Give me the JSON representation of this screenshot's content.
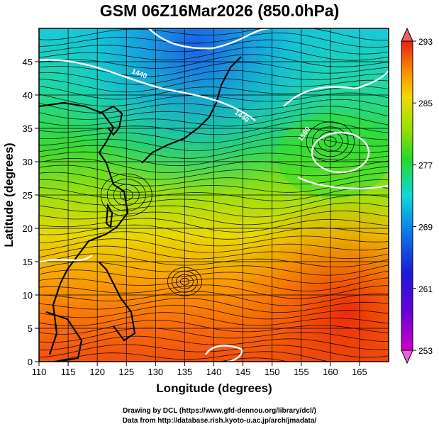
{
  "title": "GSM 06Z16Mar2026 (850.0hPa)",
  "x_axis": {
    "label": "Longitude (degrees)",
    "range": [
      110,
      170
    ],
    "ticks": [
      "110",
      "115",
      "120",
      "125",
      "130",
      "135",
      "140",
      "145",
      "150",
      "155",
      "160",
      "165"
    ]
  },
  "y_axis": {
    "label": "Latitude  (degrees)",
    "range": [
      0,
      50
    ],
    "ticks": [
      "0",
      "5",
      "10",
      "15",
      "20",
      "25",
      "30",
      "35",
      "40",
      "45"
    ]
  },
  "colorbar": {
    "ticks": [
      "293",
      "285",
      "277",
      "269",
      "261",
      "253"
    ],
    "range": [
      253,
      293
    ]
  },
  "contour_labels": [
    "1440",
    "1440",
    "1560"
  ],
  "credits": [
    "Drawing by DCL (https://www.gfd-dennou.org/library/dcl/)",
    "Data from http://database.rish.kyoto-u.ac.jp/arch/jmadata/"
  ]
}
